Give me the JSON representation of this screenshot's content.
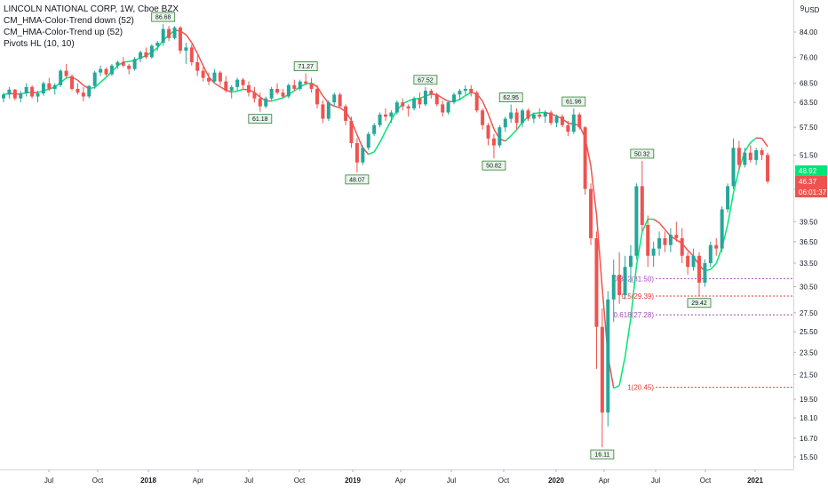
{
  "legend": {
    "title": "LINCOLN NATIONAL CORP, 1W, Cboe BZX",
    "indicators": [
      "CM_HMA-Color-Trend down (52)",
      "CM_HMA-Color-Trend up (52)",
      "Pivots HL (10, 10)"
    ]
  },
  "chart_data": {
    "type": "candlestick",
    "y_axis": {
      "scale": "log",
      "currency": "USD",
      "ticks": [
        "84.00",
        "76.00",
        "68.50",
        "63.50",
        "57.50",
        "51.50",
        "44.94",
        "39.50",
        "36.50",
        "33.50",
        "30.50",
        "27.50",
        "25.50",
        "23.50",
        "21.50",
        "19.50",
        "18.10",
        "16.70",
        "15.50"
      ],
      "tick_values": [
        84.0,
        76.0,
        68.5,
        63.5,
        57.5,
        51.5,
        44.94,
        39.5,
        36.5,
        33.5,
        30.5,
        27.5,
        25.5,
        23.5,
        21.5,
        19.5,
        18.1,
        16.7,
        15.5
      ],
      "ylim": [
        14.9,
        93
      ]
    },
    "x_axis": {
      "labels": [
        "Jul",
        "Oct",
        "2018",
        "Apr",
        "Jul",
        "Oct",
        "2019",
        "Apr",
        "Jul",
        "Oct",
        "2020",
        "Apr",
        "Jul",
        "Oct",
        "2021"
      ],
      "bold": [
        "2018",
        "2019",
        "2020",
        "2021"
      ]
    },
    "price_badges": [
      {
        "label": "48.92",
        "value": 48.92,
        "color": "#00e676",
        "text_color": "#131722"
      },
      {
        "label": "46.37",
        "value": 46.37,
        "color": "#ef5350",
        "text_color": "#ffffff"
      },
      {
        "label": "06:01:37",
        "value": 44.94,
        "color": "#ef5350",
        "text_color": "#ffffff"
      }
    ],
    "pivots": [
      {
        "label": "86.68",
        "value": 86.68,
        "type": "high"
      },
      {
        "label": "71.27",
        "value": 71.27,
        "type": "high"
      },
      {
        "label": "67.52",
        "value": 67.52,
        "type": "high"
      },
      {
        "label": "62.95",
        "value": 62.95,
        "type": "high"
      },
      {
        "label": "61.96",
        "value": 61.96,
        "type": "high"
      },
      {
        "label": "50.32",
        "value": 50.32,
        "type": "high"
      },
      {
        "label": "61.18",
        "value": 61.18,
        "type": "low"
      },
      {
        "label": "48.07",
        "value": 48.07,
        "type": "low"
      },
      {
        "label": "50.82",
        "value": 50.82,
        "type": "low"
      },
      {
        "label": "16.11",
        "value": 16.11,
        "type": "low"
      },
      {
        "label": "29.42",
        "value": 29.42,
        "type": "low"
      }
    ],
    "fib_levels": [
      {
        "label": "0.382(31.50)",
        "value": 31.5,
        "color": "#ab47bc"
      },
      {
        "label": "0.5(29.39)",
        "value": 29.39,
        "color": "#e53935"
      },
      {
        "label": "0.618(27.28)",
        "value": 27.28,
        "color": "#ab47bc"
      },
      {
        "label": "1(20.45)",
        "value": 20.45,
        "color": "#e53935"
      }
    ],
    "colors": {
      "up": "#26a69a",
      "down": "#ef5350",
      "hma_up": "#00e676",
      "hma_down": "#ef5350"
    },
    "candles": [
      [
        64.5,
        66,
        63.5,
        65.5
      ],
      [
        65.5,
        67.5,
        64.5,
        66.8
      ],
      [
        66.8,
        67,
        64,
        64.5
      ],
      [
        64.5,
        66.5,
        63.5,
        65.8
      ],
      [
        65.8,
        68.5,
        65,
        67.5
      ],
      [
        67.5,
        68,
        64.5,
        65
      ],
      [
        65,
        66.5,
        63.5,
        65.8
      ],
      [
        65.8,
        69,
        65.2,
        68.5
      ],
      [
        68.5,
        70,
        66.5,
        67
      ],
      [
        67,
        68.5,
        65.5,
        68
      ],
      [
        68,
        72.5,
        67.5,
        72
      ],
      [
        72,
        74,
        70,
        70.5
      ],
      [
        70.5,
        71,
        66.5,
        67
      ],
      [
        67,
        68.5,
        65.5,
        66
      ],
      [
        66,
        67.5,
        63.8,
        65
      ],
      [
        65,
        68,
        64.5,
        67.8
      ],
      [
        67.8,
        72,
        67,
        71.5
      ],
      [
        71.5,
        73.5,
        70.5,
        72.5
      ],
      [
        72.5,
        73,
        70.5,
        71
      ],
      [
        71,
        74,
        70.5,
        73.5
      ],
      [
        73.5,
        75,
        72.5,
        74.5
      ],
      [
        74.5,
        76,
        73,
        73.5
      ],
      [
        73.5,
        74,
        71,
        72.5
      ],
      [
        72.5,
        76,
        72,
        75.5
      ],
      [
        75.5,
        78,
        74.5,
        77.5
      ],
      [
        77.5,
        79,
        75.5,
        76
      ],
      [
        76,
        80,
        75.5,
        79.5
      ],
      [
        79.5,
        81,
        78,
        80.5
      ],
      [
        80.5,
        86.68,
        79.5,
        85
      ],
      [
        85,
        86,
        81,
        82
      ],
      [
        82,
        86,
        81.5,
        85.5
      ],
      [
        85.5,
        86,
        77,
        78
      ],
      [
        78,
        80.5,
        74,
        79
      ],
      [
        79,
        80,
        73.5,
        74.5
      ],
      [
        74.5,
        76.5,
        70.5,
        72
      ],
      [
        72,
        73,
        69,
        70
      ],
      [
        70,
        71.5,
        68,
        69
      ],
      [
        69,
        72.5,
        68.5,
        71.5
      ],
      [
        71.5,
        72,
        68,
        69
      ],
      [
        69,
        70.5,
        66,
        66.5
      ],
      [
        66.5,
        68,
        64.5,
        67.5
      ],
      [
        67.5,
        70,
        66.5,
        69.5
      ],
      [
        69.5,
        70,
        67,
        68
      ],
      [
        68,
        69,
        65,
        66
      ],
      [
        66,
        67.5,
        63.5,
        64.5
      ],
      [
        64.5,
        66,
        61.18,
        62.5
      ],
      [
        62.5,
        65,
        62,
        64.5
      ],
      [
        64.5,
        67.5,
        64,
        67
      ],
      [
        67,
        68.5,
        65.5,
        66
      ],
      [
        66,
        67,
        64.5,
        65
      ],
      [
        65,
        68.5,
        64.5,
        68
      ],
      [
        68,
        69.5,
        66.5,
        67
      ],
      [
        67,
        69.5,
        66.5,
        69
      ],
      [
        69,
        71.27,
        68,
        68.5
      ],
      [
        68.5,
        70,
        66,
        67
      ],
      [
        67,
        68,
        62,
        63
      ],
      [
        63,
        64,
        58.5,
        59.5
      ],
      [
        59.5,
        64,
        59,
        63.5
      ],
      [
        63.5,
        66,
        62.5,
        65.5
      ],
      [
        65.5,
        66,
        62,
        62.5
      ],
      [
        62.5,
        63,
        58,
        59
      ],
      [
        59,
        60,
        53,
        54
      ],
      [
        54,
        55,
        48.07,
        50
      ],
      [
        50,
        53.5,
        49.5,
        53
      ],
      [
        53,
        56.5,
        52.5,
        56
      ],
      [
        56,
        58.5,
        55.5,
        58
      ],
      [
        58,
        61,
        57.5,
        60.5
      ],
      [
        60.5,
        62,
        59,
        60
      ],
      [
        60,
        61.5,
        58.5,
        61
      ],
      [
        61,
        64,
        60.5,
        63.5
      ],
      [
        63.5,
        64.5,
        61.5,
        62.5
      ],
      [
        62.5,
        63,
        60,
        62
      ],
      [
        62,
        65,
        61.5,
        64.5
      ],
      [
        64.5,
        66,
        62,
        63
      ],
      [
        63,
        67.52,
        62.5,
        66.5
      ],
      [
        66.5,
        67,
        64.5,
        65.5
      ],
      [
        65.5,
        66,
        62.5,
        63
      ],
      [
        63,
        64,
        60,
        61
      ],
      [
        61,
        64,
        60.5,
        63.5
      ],
      [
        63.5,
        66,
        63,
        65.5
      ],
      [
        65.5,
        67,
        64,
        66.5
      ],
      [
        66.5,
        68,
        65.5,
        67
      ],
      [
        67,
        68,
        65,
        66
      ],
      [
        66,
        66.5,
        61,
        61.5
      ],
      [
        61.5,
        62,
        57,
        58
      ],
      [
        58,
        58.5,
        53.5,
        55
      ],
      [
        55,
        56,
        50.82,
        53.5
      ],
      [
        53.5,
        58,
        53,
        57.5
      ],
      [
        57.5,
        60,
        56.5,
        59.5
      ],
      [
        59.5,
        62.95,
        58.5,
        61
      ],
      [
        61,
        62,
        57,
        58.5
      ],
      [
        58.5,
        62,
        57.5,
        61.5
      ],
      [
        61.5,
        62,
        59,
        59.5
      ],
      [
        59.5,
        61,
        58.5,
        60.5
      ],
      [
        60.5,
        62,
        59.5,
        60
      ],
      [
        60,
        61.5,
        58.5,
        61
      ],
      [
        61,
        61.5,
        58,
        58.5
      ],
      [
        58.5,
        60.5,
        57.5,
        60
      ],
      [
        60,
        60.5,
        57.5,
        58
      ],
      [
        58,
        59,
        55.5,
        56.5
      ],
      [
        56.5,
        61.96,
        56,
        60.5
      ],
      [
        60.5,
        61,
        57,
        57.5
      ],
      [
        57.5,
        57.8,
        44,
        45
      ],
      [
        45,
        46,
        36,
        37
      ],
      [
        37,
        38,
        22,
        26
      ],
      [
        26,
        28,
        16.11,
        18.5
      ],
      [
        18.5,
        30,
        17.5,
        29
      ],
      [
        29,
        34,
        26.5,
        32
      ],
      [
        32,
        35,
        28.5,
        29.5
      ],
      [
        29.5,
        34.5,
        29,
        33
      ],
      [
        33,
        36,
        31,
        34.5
      ],
      [
        34.5,
        46,
        34,
        45.5
      ],
      [
        45.5,
        50.32,
        38,
        39
      ],
      [
        39,
        40.5,
        33,
        34.5
      ],
      [
        34.5,
        36.5,
        33,
        35.5
      ],
      [
        35.5,
        38,
        34.5,
        37
      ],
      [
        37,
        38,
        35,
        36
      ],
      [
        36,
        38.5,
        35,
        37.5
      ],
      [
        37.5,
        39.5,
        36.5,
        37
      ],
      [
        37,
        38.5,
        33.5,
        34.5
      ],
      [
        34.5,
        35,
        32,
        33
      ],
      [
        33,
        35.5,
        32.5,
        34.5
      ],
      [
        34.5,
        35,
        29.42,
        31
      ],
      [
        31,
        34,
        30.5,
        33.5
      ],
      [
        33.5,
        36.5,
        33,
        36
      ],
      [
        36,
        37,
        34.5,
        35.5
      ],
      [
        35.5,
        42,
        35,
        41.5
      ],
      [
        41.5,
        46,
        41,
        45.5
      ],
      [
        45.5,
        55,
        45,
        53
      ],
      [
        53,
        54.5,
        48.5,
        49.5
      ],
      [
        49.5,
        53,
        49,
        52
      ],
      [
        52,
        53.5,
        50,
        50.5
      ],
      [
        50.5,
        53,
        49.5,
        52.5
      ],
      [
        52.5,
        53,
        50.5,
        51.5
      ],
      [
        51.5,
        52,
        46,
        46.37
      ]
    ]
  }
}
